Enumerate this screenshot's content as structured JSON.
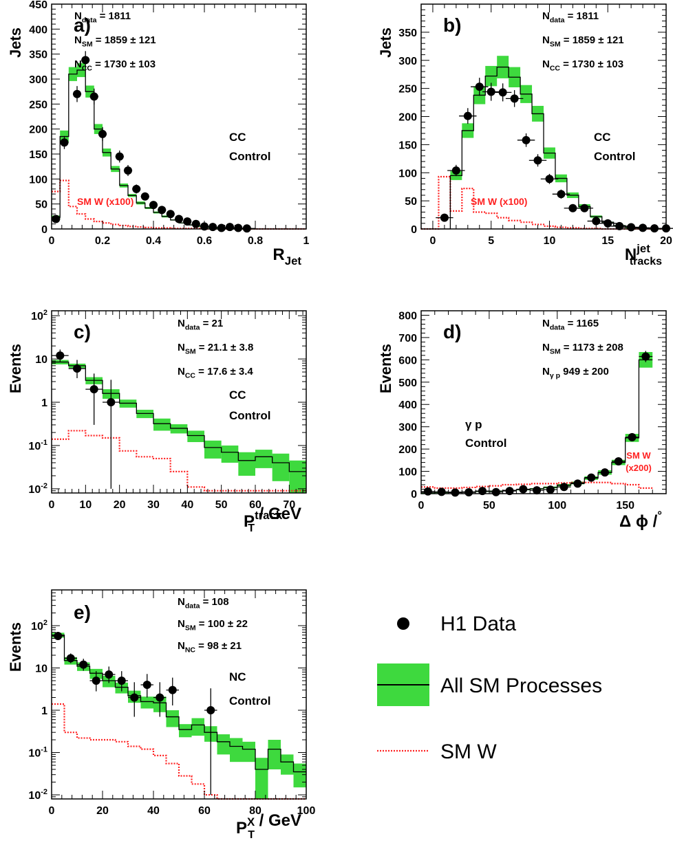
{
  "chart_data": [
    {
      "panel": "a)",
      "type": "bar",
      "ylabel": "Jets",
      "xlabel": "R",
      "xlabel_sub": "Jet",
      "xlim": [
        0,
        1
      ],
      "ylim": [
        0,
        450
      ],
      "xticks": [
        0,
        0.2,
        0.4,
        0.6,
        0.8,
        1
      ],
      "xtick_labels": [
        "0",
        "0.2",
        "0.4",
        "0.6",
        "0.8",
        "1"
      ],
      "yticks": [
        0,
        50,
        100,
        150,
        200,
        250,
        300,
        350,
        400,
        450
      ],
      "ytick_labels": [
        "0",
        "50",
        "100",
        "150",
        "200",
        "250",
        "300",
        "350",
        "400",
        "450"
      ],
      "bin_edges": [
        0,
        0.033,
        0.067,
        0.1,
        0.133,
        0.167,
        0.2,
        0.233,
        0.267,
        0.3,
        0.333,
        0.367,
        0.4,
        0.433,
        0.467,
        0.5,
        0.533,
        0.567,
        0.6,
        0.633,
        0.667,
        0.7,
        0.733,
        0.767,
        0.8,
        0.833,
        0.867,
        0.9,
        0.933,
        0.967,
        1
      ],
      "sm_values": [
        23,
        185,
        310,
        318,
        275,
        200,
        153,
        120,
        87,
        67,
        52,
        42,
        33,
        25,
        18,
        12,
        8,
        6,
        4,
        3,
        2,
        1,
        1,
        1,
        0,
        0,
        0,
        0,
        0,
        0
      ],
      "sm_err": [
        4,
        12,
        14,
        14,
        12,
        10,
        8,
        6,
        4,
        3,
        3,
        2,
        2,
        2,
        1,
        1,
        1,
        0,
        0,
        0,
        0,
        0,
        0,
        0,
        0,
        0,
        0,
        0,
        0,
        0
      ],
      "smw_values": [
        75,
        97,
        45,
        30,
        20,
        15,
        12,
        9,
        7,
        5,
        4,
        3,
        2,
        2,
        1,
        1,
        1,
        1,
        0,
        0,
        0,
        0,
        0,
        0,
        0,
        0,
        0,
        0,
        0,
        0
      ],
      "data_x": [
        0.017,
        0.05,
        0.1,
        0.133,
        0.167,
        0.2,
        0.267,
        0.3,
        0.333,
        0.367,
        0.4,
        0.433,
        0.467,
        0.5,
        0.533,
        0.567,
        0.6,
        0.633,
        0.667,
        0.7,
        0.733,
        0.767
      ],
      "data_y": [
        20,
        173,
        270,
        338,
        265,
        190,
        145,
        117,
        80,
        65,
        48,
        38,
        30,
        20,
        15,
        10,
        5,
        4,
        2,
        4,
        2,
        1
      ],
      "data_err": [
        5,
        13,
        16,
        18,
        16,
        14,
        12,
        11,
        9,
        8,
        7,
        6,
        5,
        4,
        4,
        3,
        2,
        2,
        1,
        2,
        1,
        1
      ],
      "labels": {
        "n1": "N",
        "n1_sub": "data",
        "n1_val": "= 1811",
        "n2": "N",
        "n2_sub": "SM",
        "n2_val": "= 1859 ± 121",
        "n3": "N",
        "n3_sub": "CC",
        "n3_val": "= 1730 ± 103",
        "ctrl1": "CC",
        "ctrl2": "Control",
        "smw": "SM W (x100)"
      }
    },
    {
      "panel": "b)",
      "type": "bar",
      "ylabel": "Jets",
      "xlabel": "N",
      "xlabel_sup": "jet",
      "xlabel_sub": "tracks",
      "xlim": [
        -1,
        20
      ],
      "ylim": [
        0,
        400
      ],
      "xticks": [
        0,
        5,
        10,
        15,
        20
      ],
      "xtick_labels": [
        "0",
        "5",
        "10",
        "15",
        "20"
      ],
      "yticks": [
        0,
        50,
        100,
        150,
        200,
        250,
        300,
        350
      ],
      "ytick_labels": [
        "0",
        "50",
        "100",
        "150",
        "200",
        "250",
        "300",
        "350"
      ],
      "bin_edges": [
        -1,
        0.5,
        1.5,
        2.5,
        3.5,
        4.5,
        5.5,
        6.5,
        7.5,
        8.5,
        9.5,
        10.5,
        11.5,
        12.5,
        13.5,
        14.5,
        15.5,
        16.5,
        17.5,
        18.5,
        19.5,
        20
      ],
      "sm_values": [
        0,
        0,
        95,
        175,
        238,
        272,
        288,
        270,
        240,
        205,
        135,
        90,
        60,
        40,
        22,
        12,
        6,
        3,
        2,
        1,
        0
      ],
      "sm_err": [
        0,
        0,
        8,
        13,
        16,
        18,
        20,
        18,
        16,
        14,
        10,
        7,
        5,
        4,
        2,
        1,
        1,
        0,
        0,
        0,
        0
      ],
      "smw_values": [
        0,
        93,
        32,
        72,
        30,
        28,
        20,
        15,
        12,
        8,
        5,
        3,
        2,
        1,
        1,
        0,
        0,
        0,
        0,
        0,
        0
      ],
      "data_x": [
        1,
        2,
        3,
        4,
        5,
        6,
        7,
        8,
        9,
        10,
        11,
        12,
        13,
        14,
        15,
        16,
        17,
        18,
        19,
        20
      ],
      "data_y": [
        20,
        104,
        201,
        253,
        244,
        243,
        232,
        158,
        122,
        89,
        62,
        37,
        37,
        14,
        10,
        5,
        3,
        2,
        1,
        1
      ],
      "data_err": [
        5,
        10,
        14,
        16,
        16,
        16,
        15,
        12,
        11,
        9,
        8,
        6,
        6,
        4,
        3,
        2,
        2,
        1,
        1,
        1
      ],
      "labels": {
        "n1": "N",
        "n1_sub": "data",
        "n1_val": "= 1811",
        "n2": "N",
        "n2_sub": "SM",
        "n2_val": "= 1859 ± 121",
        "n3": "N",
        "n3_sub": "CC",
        "n3_val": "= 1730 ± 103",
        "ctrl1": "CC",
        "ctrl2": "Control",
        "smw": "SM W (x100)"
      }
    },
    {
      "panel": "c)",
      "type": "bar",
      "ylabel": "Events",
      "xlabel": "P",
      "xlabel_sup": "track",
      "xlabel_sub": "T",
      "xlabel_unit": " / GeV",
      "log_y": true,
      "xlim": [
        0,
        75
      ],
      "ylim": [
        0.008,
        130
      ],
      "xticks": [
        0,
        10,
        20,
        30,
        40,
        50,
        60,
        70
      ],
      "xtick_labels": [
        "0",
        "10",
        "20",
        "30",
        "40",
        "50",
        "60",
        "70"
      ],
      "yticks": [
        0.01,
        0.1,
        1,
        10,
        100
      ],
      "ytick_labels": [
        "10⁻²",
        "10⁻¹",
        "1",
        "10",
        "10²"
      ],
      "bin_edges": [
        0,
        5,
        10,
        15,
        20,
        25,
        30,
        35,
        40,
        45,
        50,
        55,
        60,
        65,
        70,
        75
      ],
      "sm_values": [
        8.5,
        7,
        3.2,
        1.6,
        0.95,
        0.55,
        0.32,
        0.25,
        0.17,
        0.09,
        0.07,
        0.045,
        0.055,
        0.04,
        0.025
      ],
      "sm_err": [
        1,
        0.8,
        0.6,
        0.4,
        0.2,
        0.12,
        0.1,
        0.06,
        0.05,
        0.04,
        0.03,
        0.025,
        0.025,
        0.025,
        0.02
      ],
      "smw_values": [
        0.14,
        0.22,
        0.17,
        0.15,
        0.075,
        0.055,
        0.05,
        0.025,
        0.011,
        0.009,
        0.009,
        0.009,
        0.009,
        0.009,
        0.009
      ],
      "data_x": [
        2.5,
        7.5,
        12.5,
        17.5
      ],
      "data_y": [
        12,
        6,
        2,
        1
      ],
      "data_err_lo": [
        3.5,
        2.4,
        1.7,
        0.99
      ],
      "data_err_hi": [
        4.5,
        3.5,
        2.6,
        2.3
      ],
      "labels": {
        "n1": "N",
        "n1_sub": "data",
        "n1_val": "= 21",
        "n2": "N",
        "n2_sub": "SM",
        "n2_val": "= 21.1 ± 3.8",
        "n3": "N",
        "n3_sub": "CC",
        "n3_val": "= 17.6 ± 3.4",
        "ctrl1": "CC",
        "ctrl2": "Control",
        "smw": ""
      }
    },
    {
      "panel": "d)",
      "type": "bar",
      "ylabel": "Events",
      "xlabel": "Δ ϕ /",
      "xlabel_sup": "°",
      "xlim": [
        0,
        180
      ],
      "ylim": [
        0,
        820
      ],
      "xticks": [
        0,
        50,
        100,
        150
      ],
      "xtick_labels": [
        "0",
        "50",
        "100",
        "150"
      ],
      "yticks": [
        0,
        100,
        200,
        300,
        400,
        500,
        600,
        700,
        800
      ],
      "ytick_labels": [
        "0",
        "100",
        "200",
        "300",
        "400",
        "500",
        "600",
        "700",
        "800"
      ],
      "bin_edges": [
        0,
        10,
        20,
        30,
        40,
        50,
        60,
        70,
        80,
        90,
        100,
        110,
        120,
        130,
        140,
        150,
        160,
        170,
        180
      ],
      "sm_values": [
        5,
        6,
        7,
        8,
        10,
        12,
        15,
        18,
        22,
        28,
        38,
        48,
        70,
        95,
        140,
        250,
        600
      ],
      "sm_err": [
        1,
        1,
        1,
        1,
        2,
        2,
        2,
        3,
        3,
        4,
        5,
        6,
        8,
        10,
        12,
        18,
        35
      ],
      "smw_values": [
        30,
        25,
        25,
        28,
        32,
        35,
        40,
        42,
        45,
        45,
        48,
        50,
        50,
        50,
        45,
        40,
        25
      ],
      "data_x": [
        5,
        15,
        25,
        35,
        45,
        55,
        65,
        75,
        85,
        95,
        105,
        115,
        125,
        135,
        145,
        155,
        165,
        175
      ],
      "data_y": [
        10,
        8,
        5,
        6,
        12,
        7,
        12,
        20,
        15,
        18,
        30,
        45,
        72,
        95,
        145,
        253,
        615,
        0
      ],
      "data_err": [
        3,
        3,
        2,
        2,
        3,
        3,
        3,
        4,
        4,
        4,
        5,
        7,
        8,
        10,
        12,
        16,
        25,
        0
      ],
      "labels": {
        "n1": "N",
        "n1_sub": "data",
        "n1_val": "= 1165",
        "n2": "N",
        "n2_sub": "SM",
        "n2_val": "= 1173 ± 208",
        "n3": "N",
        "n3_sub": "γ p",
        "n3_val": "949 ± 200",
        "ctrl1": "γ p",
        "ctrl2": "Control",
        "smw": "SM W",
        "smw2": "(x200)"
      }
    },
    {
      "panel": "e)",
      "type": "bar",
      "ylabel": "Events",
      "xlabel": "P",
      "xlabel_sup": "X",
      "xlabel_sub": "T",
      "xlabel_unit": " / GeV",
      "log_y": true,
      "xlim": [
        0,
        100
      ],
      "ylim": [
        0.008,
        700
      ],
      "xticks": [
        0,
        20,
        40,
        60,
        80,
        100
      ],
      "xtick_labels": [
        "0",
        "20",
        "40",
        "60",
        "80",
        "100"
      ],
      "yticks": [
        0.01,
        0.1,
        1,
        10,
        100
      ],
      "ytick_labels": [
        "10⁻²",
        "10⁻¹",
        "1",
        "10",
        "10²"
      ],
      "bin_edges": [
        0,
        5,
        10,
        15,
        20,
        25,
        30,
        35,
        40,
        45,
        50,
        55,
        60,
        65,
        70,
        75,
        80,
        85,
        90,
        95,
        100
      ],
      "sm_values": [
        60,
        15,
        11,
        7.5,
        5,
        3.5,
        2.2,
        1.6,
        1.5,
        0.7,
        0.35,
        0.45,
        0.3,
        0.18,
        0.14,
        0.12,
        0.04,
        0.12,
        0.06,
        0.035
      ],
      "sm_err": [
        8,
        3,
        2.5,
        2,
        1.5,
        1,
        0.7,
        0.5,
        0.6,
        0.3,
        0.12,
        0.2,
        0.12,
        0.09,
        0.08,
        0.06,
        0.035,
        0.08,
        0.03,
        0.02
      ],
      "smw_values": [
        1.4,
        0.3,
        0.22,
        0.2,
        0.2,
        0.18,
        0.14,
        0.12,
        0.085,
        0.055,
        0.028,
        0.018,
        0.01,
        0.008,
        0.008,
        0.008,
        0.008,
        0.008,
        0.008,
        0.008
      ],
      "data_x": [
        2.5,
        7.5,
        12.5,
        17.5,
        22.5,
        27.5,
        32.5,
        37.5,
        42.5,
        47.5,
        62.5
      ],
      "data_y": [
        57,
        17,
        12,
        5,
        7,
        5,
        2,
        4,
        2,
        3,
        1
      ],
      "data_err_lo": [
        8,
        4,
        3.4,
        2.2,
        2.6,
        2.2,
        1.3,
        2,
        1.3,
        1.7,
        0.99
      ],
      "data_err_hi": [
        8,
        5,
        4.5,
        3.4,
        3.8,
        3.4,
        2.6,
        3.2,
        2.6,
        2.9,
        2.3
      ],
      "labels": {
        "n1": "N",
        "n1_sub": "data",
        "n1_val": "= 108",
        "n2": "N",
        "n2_sub": "SM",
        "n2_val": "= 100 ± 22",
        "n3": "N",
        "n3_sub": "NC",
        "n3_val": "=   98 ± 21",
        "ctrl1": "NC",
        "ctrl2": "Control",
        "smw": ""
      }
    }
  ],
  "legend": {
    "data_label": "H1 Data",
    "sm_label": "All SM Processes",
    "smw_label": "SM W"
  },
  "colors": {
    "band": "#3ed93e",
    "sm_line": "#000000",
    "smw": "#ff2020",
    "data": "#000000"
  }
}
